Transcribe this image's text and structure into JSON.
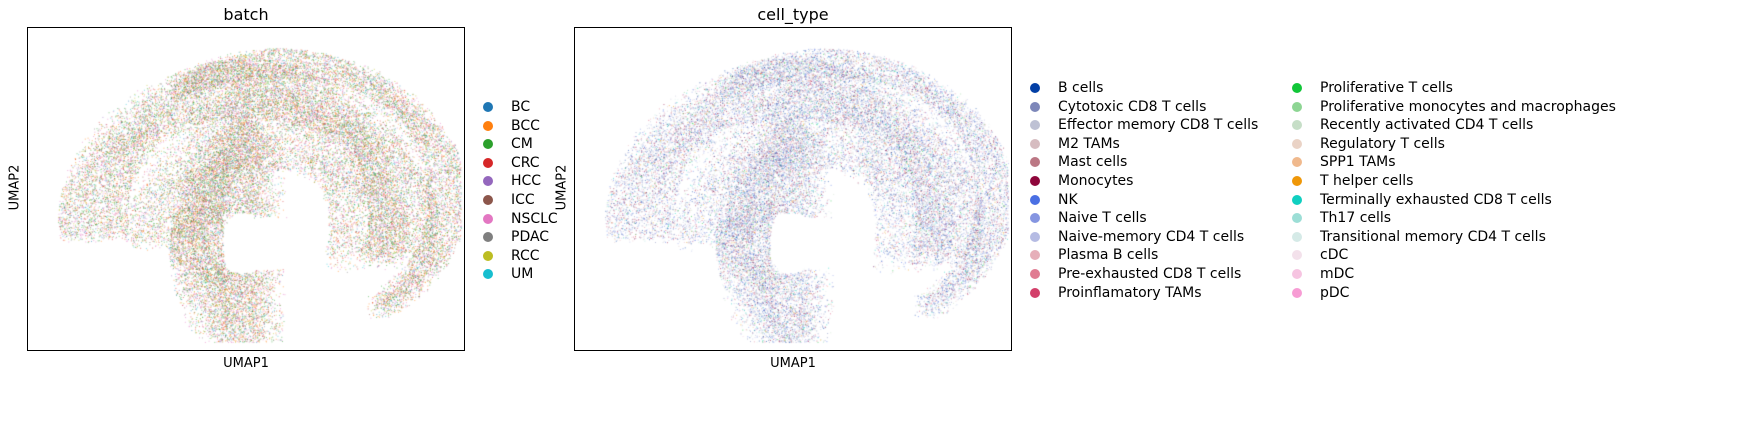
{
  "chart_data": [
    {
      "type": "scatter",
      "title": "batch",
      "xlabel": "UMAP1",
      "ylabel": "UMAP2",
      "xticks": false,
      "yticks": false,
      "grid": false,
      "legend_placement": "right",
      "legend": [
        {
          "label": "BC",
          "color": "#1f77b4"
        },
        {
          "label": "BCC",
          "color": "#ff7f0e"
        },
        {
          "label": "CM",
          "color": "#2ca02c"
        },
        {
          "label": "CRC",
          "color": "#d62728"
        },
        {
          "label": "HCC",
          "color": "#9467bd"
        },
        {
          "label": "ICC",
          "color": "#8c564b"
        },
        {
          "label": "NSCLC",
          "color": "#e377c2"
        },
        {
          "label": "PDAC",
          "color": "#7f7f7f"
        },
        {
          "label": "RCC",
          "color": "#bcbd22"
        },
        {
          "label": "UM",
          "color": "#17becf"
        }
      ]
    },
    {
      "type": "scatter",
      "title": "cell_type",
      "xlabel": "UMAP1",
      "ylabel": "UMAP2",
      "xticks": false,
      "yticks": false,
      "grid": false,
      "legend_placement": "right",
      "legend": [
        {
          "label": "B cells",
          "color": "#023fa5"
        },
        {
          "label": "Cytotoxic CD8 T cells",
          "color": "#7d87b9"
        },
        {
          "label": "Effector memory CD8 T cells",
          "color": "#bec1d4"
        },
        {
          "label": "M2 TAMs",
          "color": "#d6bcc0"
        },
        {
          "label": "Mast cells",
          "color": "#bb7784"
        },
        {
          "label": "Monocytes",
          "color": "#8e063b"
        },
        {
          "label": "NK",
          "color": "#4a6fe3"
        },
        {
          "label": "Naive T cells",
          "color": "#8595e1"
        },
        {
          "label": "Naive-memory CD4 T cells",
          "color": "#b5bbe3"
        },
        {
          "label": "Plasma B cells",
          "color": "#e6afb9"
        },
        {
          "label": "Pre-exhausted CD8 T cells",
          "color": "#e07b91"
        },
        {
          "label": "Proinflamatory TAMs",
          "color": "#d33f6a"
        },
        {
          "label": "Proliferative T cells",
          "color": "#11c638"
        },
        {
          "label": "Proliferative monocytes and macrophages",
          "color": "#8dd593"
        },
        {
          "label": "Recently activated CD4 T cells",
          "color": "#c6dec7"
        },
        {
          "label": "Regulatory T cells",
          "color": "#ead3c6"
        },
        {
          "label": "SPP1 TAMs",
          "color": "#f0b98d"
        },
        {
          "label": "T helper cells",
          "color": "#ef9708"
        },
        {
          "label": "Terminally exhausted CD8 T cells",
          "color": "#0fcfc0"
        },
        {
          "label": "Th17 cells",
          "color": "#9cded6"
        },
        {
          "label": "Transitional memory CD4 T cells",
          "color": "#d5eae7"
        },
        {
          "label": "cDC",
          "color": "#f3e1eb"
        },
        {
          "label": "mDC",
          "color": "#f6c4e1"
        },
        {
          "label": "pDC",
          "color": "#f79cd4"
        }
      ]
    }
  ]
}
